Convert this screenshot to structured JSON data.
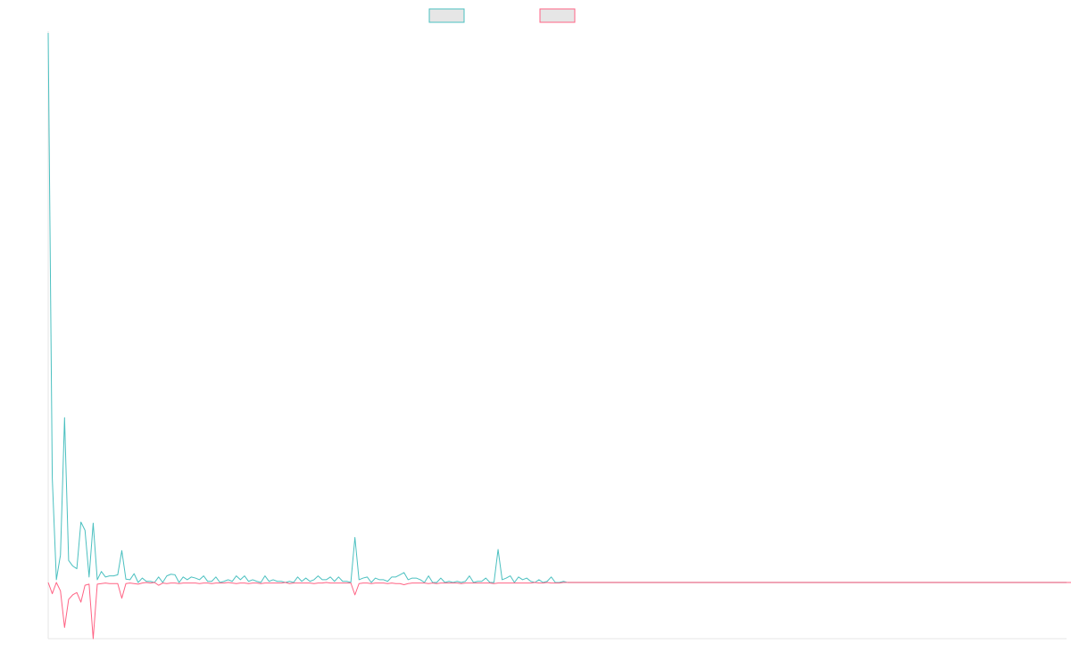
{
  "chart_data": {
    "type": "line",
    "title": "",
    "xlabel": "",
    "ylabel": "",
    "grid": false,
    "legend_placement": "top-center",
    "x_count": 250,
    "ylim": [
      -100,
      1000
    ],
    "series": [
      {
        "color": "#4bc0c0",
        "fill": "#e6e6e6",
        "values": [
          1000,
          190,
          5,
          50,
          300,
          40,
          30,
          25,
          110,
          95,
          10,
          108,
          5,
          20,
          10,
          12,
          12,
          14,
          58,
          6,
          5,
          16,
          0,
          8,
          2,
          2,
          0,
          10,
          0,
          12,
          15,
          14,
          0,
          10,
          5,
          10,
          8,
          5,
          12,
          2,
          2,
          10,
          0,
          2,
          5,
          2,
          12,
          5,
          12,
          2,
          5,
          2,
          0,
          12,
          2,
          5,
          2,
          2,
          0,
          2,
          0,
          10,
          2,
          8,
          2,
          5,
          12,
          5,
          5,
          10,
          2,
          10,
          2,
          2,
          0,
          82,
          5,
          8,
          10,
          0,
          8,
          5,
          5,
          2,
          10,
          10,
          14,
          18,
          5,
          8,
          8,
          5,
          0,
          12,
          0,
          0,
          8,
          0,
          2,
          0,
          2,
          0,
          2,
          12,
          0,
          2,
          2,
          8,
          0,
          0,
          60,
          5,
          8,
          12,
          0,
          10,
          5,
          8,
          2,
          0,
          5,
          0,
          2,
          10,
          0,
          0,
          2,
          0,
          0,
          0,
          0,
          0,
          0,
          0,
          0,
          0,
          0,
          0,
          0,
          0,
          0,
          0,
          0,
          0,
          0,
          0,
          0,
          0,
          0,
          0,
          0,
          0,
          0,
          0,
          0,
          0,
          0,
          0,
          0,
          0,
          0,
          0,
          0,
          0,
          0,
          0,
          0,
          0,
          0,
          0,
          0,
          0,
          0,
          0,
          0,
          0,
          0,
          0,
          0,
          0,
          0,
          0,
          0,
          0,
          0,
          0,
          0,
          0,
          0,
          0,
          0,
          0,
          0,
          0,
          0,
          0,
          0,
          0,
          0,
          0,
          0,
          0,
          0,
          0,
          0,
          0,
          0,
          0,
          0,
          0,
          0,
          0,
          0,
          0,
          0,
          0,
          0,
          0,
          0,
          0,
          0,
          0,
          0,
          0,
          0,
          0,
          0,
          0,
          0,
          0,
          0,
          0,
          0,
          0,
          0,
          0,
          0,
          0,
          0,
          0,
          0,
          0,
          0,
          0,
          0,
          0,
          0,
          0,
          0,
          0,
          0,
          0,
          0,
          0,
          0,
          0
        ]
      },
      {
        "color": "#ff6384",
        "fill": "#e6e6e6",
        "values": [
          0,
          -20,
          0,
          -15,
          -80,
          -30,
          -22,
          -18,
          -35,
          -5,
          -3,
          -100,
          -3,
          -2,
          -1,
          -2,
          -2,
          -2,
          -28,
          -2,
          -1,
          -2,
          -3,
          -1,
          0,
          -1,
          0,
          -5,
          -1,
          -2,
          -1,
          -1,
          -2,
          -1,
          -1,
          -1,
          -1,
          -2,
          -1,
          -1,
          -2,
          -1,
          -1,
          -1,
          0,
          -1,
          -2,
          -1,
          -1,
          -2,
          -1,
          -1,
          -2,
          -1,
          -1,
          -1,
          -1,
          -1,
          0,
          -2,
          -1,
          -1,
          -1,
          -1,
          -1,
          -2,
          -1,
          -1,
          0,
          -1,
          -1,
          -1,
          -1,
          -1,
          -1,
          -22,
          -2,
          -1,
          -1,
          -2,
          -1,
          -1,
          -1,
          -2,
          -1,
          -2,
          -2,
          -4,
          -2,
          -1,
          -1,
          -1,
          -1,
          -2,
          -1,
          -2,
          -1,
          -1,
          -1,
          -1,
          -1,
          -2,
          -1,
          -1,
          -1,
          -1,
          -1,
          -1,
          -1,
          -2,
          -1,
          -1,
          -1,
          -1,
          -1,
          -1,
          -1,
          -1,
          -1,
          0,
          -1,
          -1,
          0,
          -1,
          -1,
          -1,
          0,
          0,
          0,
          0,
          0,
          0,
          0,
          0,
          0,
          0,
          0,
          0,
          0,
          0,
          0,
          0,
          0,
          0,
          0,
          0,
          0,
          0,
          0,
          0,
          0,
          0,
          0,
          0,
          0,
          0,
          0,
          0,
          0,
          0,
          0,
          0,
          0,
          0,
          0,
          0,
          0,
          0,
          0,
          0,
          0,
          0,
          0,
          0,
          0,
          0,
          0,
          0,
          0,
          0,
          0,
          0,
          0,
          0,
          0,
          0,
          0,
          0,
          0,
          0,
          0,
          0,
          0,
          0,
          0,
          0,
          0,
          0,
          0,
          0,
          0,
          0,
          0,
          0,
          0,
          0,
          0,
          0,
          0,
          0,
          0,
          0,
          0,
          0,
          0,
          0,
          0,
          0,
          0,
          0,
          0,
          0,
          0,
          0,
          0,
          0,
          0,
          0,
          0,
          0,
          0,
          0,
          0,
          0,
          0,
          0,
          0,
          0,
          0,
          0,
          0,
          0,
          0,
          0,
          0,
          0,
          0,
          0,
          0,
          0,
          0,
          0,
          0,
          0,
          0,
          0,
          0,
          0
        ]
      }
    ]
  },
  "colors": {
    "background": "#ffffff",
    "axis": "#e5e5e5",
    "baseline": "#8a9ba8"
  }
}
